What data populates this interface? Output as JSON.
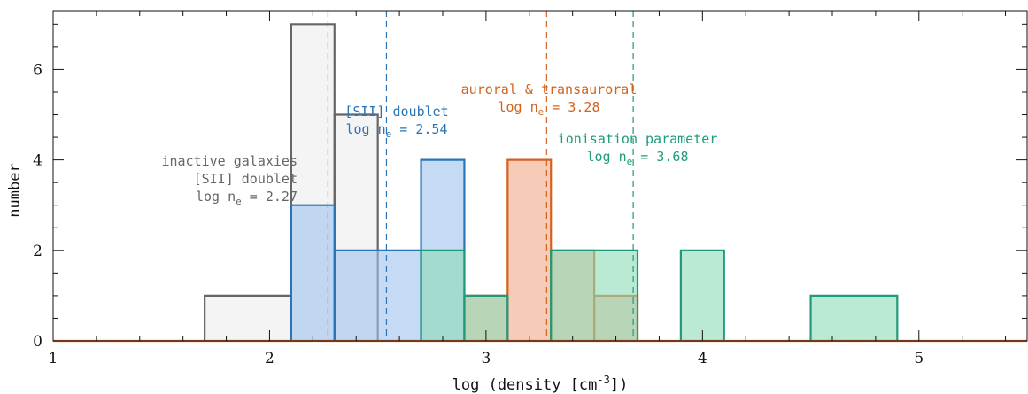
{
  "chart_data": {
    "type": "bar",
    "title": "",
    "xlabel": "log (density [cm",
    "xlabel_sup": "-3",
    "xlabel_end": "])",
    "ylabel": "number",
    "xlim": [
      1,
      5.5
    ],
    "ylim": [
      0,
      7.3
    ],
    "x_ticks": [
      "1",
      "2",
      "3",
      "4",
      "5"
    ],
    "y_ticks": [
      "0",
      "2",
      "4",
      "6"
    ],
    "grid": false,
    "series": [
      {
        "name": "inactive galaxies [SII] doublet",
        "color": "#666666",
        "fill": "#ececec",
        "bins": [
          {
            "x0": 1.7,
            "x1": 2.1,
            "count": 1
          },
          {
            "x0": 2.1,
            "x1": 2.3,
            "count": 7
          },
          {
            "x0": 2.3,
            "x1": 2.5,
            "count": 5
          }
        ],
        "median": 2.27
      },
      {
        "name": "[SII] doublet",
        "color": "#2a74b6",
        "fill": "#9fc2ec",
        "bins": [
          {
            "x0": 2.1,
            "x1": 2.3,
            "count": 3
          },
          {
            "x0": 2.3,
            "x1": 2.7,
            "count": 2
          },
          {
            "x0": 2.7,
            "x1": 2.9,
            "count": 4
          }
        ],
        "median": 2.54
      },
      {
        "name": "auroral & transauroral",
        "color": "#d4621e",
        "fill": "#f4a88a",
        "bins": [
          {
            "x0": 2.9,
            "x1": 3.1,
            "count": 1
          },
          {
            "x0": 3.1,
            "x1": 3.3,
            "count": 4
          },
          {
            "x0": 3.3,
            "x1": 3.5,
            "count": 2
          },
          {
            "x0": 3.5,
            "x1": 3.7,
            "count": 1
          }
        ],
        "median": 3.28
      },
      {
        "name": "ionisation parameter",
        "color": "#1f9a7a",
        "fill": "#8ddcb8",
        "bins": [
          {
            "x0": 2.7,
            "x1": 2.9,
            "count": 2
          },
          {
            "x0": 2.9,
            "x1": 3.1,
            "count": 1
          },
          {
            "x0": 3.3,
            "x1": 3.7,
            "count": 2
          },
          {
            "x0": 3.9,
            "x1": 4.1,
            "count": 2
          },
          {
            "x0": 4.5,
            "x1": 4.9,
            "count": 1
          }
        ],
        "median": 3.68
      }
    ],
    "annotations": [
      {
        "series": 0,
        "lines": [
          "inactive galaxies",
          "[SII] doublet"
        ],
        "ne_prefix": "log n",
        "ne_sub": "e",
        "ne_value": " = 2.27",
        "color": "#666666"
      },
      {
        "series": 1,
        "lines": [
          "[SII] doublet"
        ],
        "ne_prefix": "log n",
        "ne_sub": "e",
        "ne_value": " = 2.54",
        "color": "#2a74b6"
      },
      {
        "series": 2,
        "lines": [
          "auroral & transauroral"
        ],
        "ne_prefix": "log n",
        "ne_sub": "e",
        "ne_value": " = 3.28",
        "color": "#d4621e"
      },
      {
        "series": 3,
        "lines": [
          "ionisation parameter"
        ],
        "ne_prefix": "log n",
        "ne_sub": "e",
        "ne_value": " = 3.68",
        "color": "#1f9a7a"
      }
    ]
  }
}
